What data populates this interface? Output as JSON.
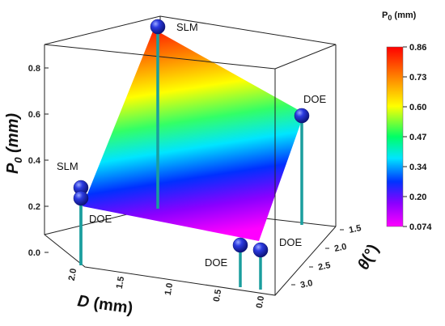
{
  "chart_data": {
    "type": "surface3d",
    "axes": {
      "x": {
        "title": "D (mm)",
        "ticks": [
          "2.0",
          "1.5",
          "1.0",
          "0.5",
          "0.0"
        ],
        "range": [
          2.0,
          0.0
        ]
      },
      "y": {
        "title": "θ(°)",
        "ticks": [
          "1.5",
          "2.0",
          "2.5",
          "3.0"
        ],
        "range": [
          1.5,
          3.0
        ]
      },
      "z": {
        "title": "P0 (mm)",
        "ticks": [
          "0.0",
          "0.2",
          "0.4",
          "0.6",
          "0.8"
        ],
        "range": [
          0,
          0.8
        ]
      }
    },
    "surface": {
      "description_values": [
        {
          "D": 2.0,
          "theta": 1.5,
          "P0": 0.28
        },
        {
          "D": 0.0,
          "theta": 1.5,
          "P0": 0.86
        },
        {
          "D": 0.0,
          "theta": 3.0,
          "P0": 0.55
        },
        {
          "D": 2.0,
          "theta": 3.0,
          "P0": 0.074
        }
      ]
    },
    "points": [
      {
        "label": "SLM",
        "D": 2.0,
        "theta": 1.5,
        "P0": 0.28
      },
      {
        "label": "DOE",
        "D": 2.0,
        "theta": 1.5,
        "P0": 0.25
      },
      {
        "label": "SLM",
        "D": 0.0,
        "theta": 1.5,
        "P0": 0.86
      },
      {
        "label": "DOE",
        "D": 0.0,
        "theta": 3.0,
        "P0": 0.55
      },
      {
        "label": "DOE",
        "D": 0.5,
        "theta": 3.0,
        "P0": 0.03
      },
      {
        "label": "DOE",
        "D": 0.0,
        "theta": 2.9,
        "P0": 0.02
      }
    ],
    "colorbar": {
      "title": "P0 (mm)",
      "ticks": [
        "0.86",
        "0.73",
        "0.60",
        "0.47",
        "0.34",
        "0.20",
        "0.074"
      ],
      "colors": [
        "#ff0000",
        "#ff8c00",
        "#ffff00",
        "#00ff66",
        "#00e5ff",
        "#0033ff",
        "#8a00ff",
        "#ff00ff"
      ]
    }
  }
}
